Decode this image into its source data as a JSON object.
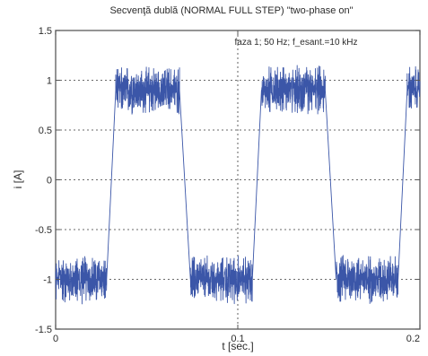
{
  "chart_data": {
    "type": "line",
    "title": "Secvenţă dublă (NORMAL FULL STEP) \"two-phase on\"",
    "annotation": "faza 1; 50 Hz; f_esant.=10 kHz",
    "xlabel": "t [sec.]",
    "ylabel": "i [A]",
    "xlim": [
      0,
      0.2
    ],
    "ylim": [
      -1.5,
      1.5
    ],
    "x_ticks": [
      0,
      0.1,
      0.2
    ],
    "x_tick_labels": [
      "0",
      "0.1",
      "0.2"
    ],
    "y_ticks": [
      -1.5,
      -1,
      -0.5,
      0,
      0.5,
      1,
      1.5
    ],
    "y_tick_labels": [
      "-1.5",
      "-1",
      "-0.5",
      "0",
      "0.5",
      "1",
      "1.5"
    ],
    "grid": true,
    "line_color": "#3b56a8",
    "sample_rate_hz": 10000,
    "signal_frequency_hz": 50,
    "series": [
      {
        "name": "faza 1",
        "segments": [
          {
            "x": [
              0,
              0.028
            ],
            "level": -1.0,
            "ripple": 0.2
          },
          {
            "x": [
              0.028,
              0.033
            ],
            "ramp": [
              -1.0,
              0.9
            ]
          },
          {
            "x": [
              0.033,
              0.068
            ],
            "level": 0.9,
            "ripple": 0.2
          },
          {
            "x": [
              0.068,
              0.074
            ],
            "ramp": [
              0.9,
              -1.0
            ]
          },
          {
            "x": [
              0.074,
              0.108
            ],
            "level": -1.0,
            "ripple": 0.2
          },
          {
            "x": [
              0.108,
              0.113
            ],
            "ramp": [
              -1.0,
              0.9
            ]
          },
          {
            "x": [
              0.113,
              0.148
            ],
            "level": 0.9,
            "ripple": 0.2
          },
          {
            "x": [
              0.148,
              0.154
            ],
            "ramp": [
              0.9,
              -1.0
            ]
          },
          {
            "x": [
              0.154,
              0.188
            ],
            "level": -1.0,
            "ripple": 0.2
          },
          {
            "x": [
              0.188,
              0.193
            ],
            "ramp": [
              -1.0,
              0.9
            ]
          },
          {
            "x": [
              0.193,
              0.2
            ],
            "level": 0.9,
            "ripple": 0.2
          }
        ]
      }
    ]
  }
}
